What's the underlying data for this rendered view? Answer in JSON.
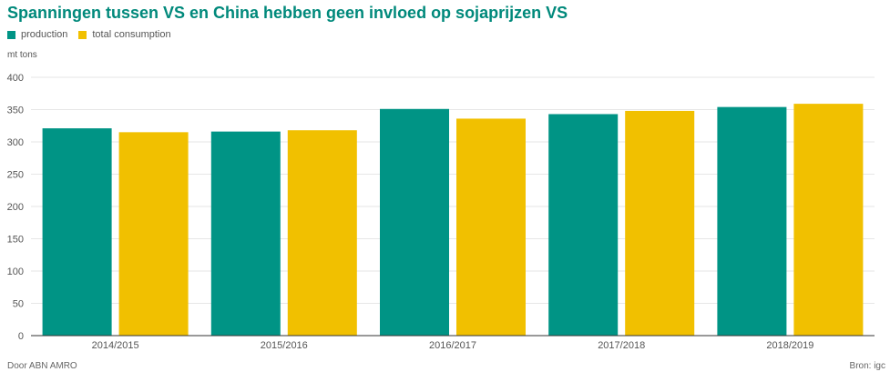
{
  "chart_data": {
    "type": "bar",
    "title": "Spanningen tussen VS en China hebben geen invloed op sojaprijzen VS",
    "ylabel": "mt tons",
    "xlabel": "",
    "categories": [
      "2014/2015",
      "2015/2016",
      "2016/2017",
      "2017/2018",
      "2018/2019"
    ],
    "series": [
      {
        "name": "production",
        "color": "#009485",
        "values": [
          321,
          316,
          351,
          343,
          354
        ]
      },
      {
        "name": "total consumption",
        "color": "#f1c000",
        "values": [
          315,
          318,
          336,
          348,
          359
        ]
      }
    ],
    "ylim": [
      0,
      400
    ],
    "yticks": [
      0,
      50,
      100,
      150,
      200,
      250,
      300,
      350,
      400
    ],
    "grid": true,
    "legend": "top-left"
  },
  "footer": {
    "left": "Door ABN AMRO",
    "right": "Bron: igc"
  }
}
